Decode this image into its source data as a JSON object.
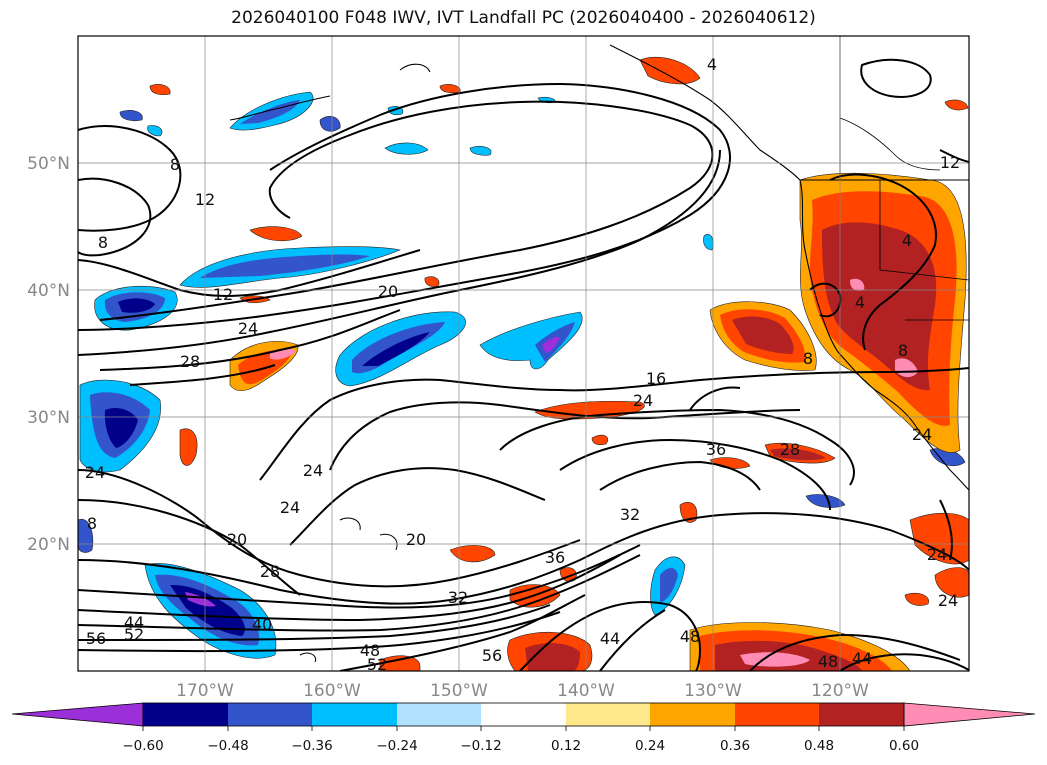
{
  "map": {
    "title": "2026040100 F048 IWV, IVT Landfall PC (2026040400 - 2026040612)",
    "lat_labels": [
      "50°N",
      "40°N",
      "30°N",
      "20°N"
    ],
    "lon_labels": [
      "170°W",
      "160°W",
      "150°W",
      "140°W",
      "130°W",
      "120°W"
    ],
    "contour_labels": [
      "8",
      "12",
      "8",
      "12",
      "20",
      "24",
      "28",
      "16",
      "24",
      "36",
      "28",
      "24",
      "24",
      "20",
      "32",
      "20",
      "28",
      "36",
      "32",
      "24",
      "44",
      "40",
      "56",
      "52",
      "48",
      "52",
      "56",
      "44",
      "48",
      "48",
      "44",
      "24",
      "24",
      "8",
      "4",
      "4",
      "4",
      "8",
      "8",
      "12",
      "24"
    ],
    "colorbar": {
      "ticks": [
        "−0.60",
        "−0.48",
        "−0.36",
        "−0.24",
        "−0.12",
        "0.12",
        "0.24",
        "0.36",
        "0.48",
        "0.60"
      ],
      "colors": [
        "#9b30d8",
        "#00008b",
        "#3355cc",
        "#00bfff",
        "#b0e2ff",
        "#ffffff",
        "#ffe88c",
        "#ffa500",
        "#ff4500",
        "#b22222",
        "#ff8cb4"
      ]
    }
  }
}
